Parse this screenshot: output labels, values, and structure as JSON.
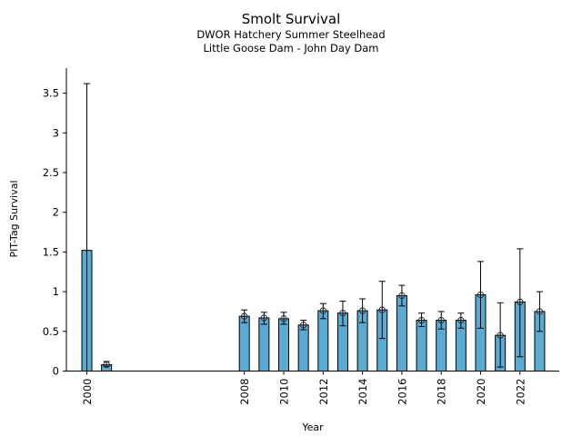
{
  "chart_data": {
    "type": "bar",
    "title": "Smolt Survival",
    "subtitle_lines": [
      "DWOR Hatchery Summer Steelhead",
      "Little Goose Dam - John Day Dam"
    ],
    "xlabel": "Year",
    "ylabel": "PIT-Tag Survival",
    "ylim": [
      0,
      3.8
    ],
    "xlim": [
      1999.0,
      2024.0
    ],
    "yticks": [
      0,
      0.5,
      1,
      1.5,
      2,
      2.5,
      3,
      3.5
    ],
    "ytick_labels": [
      "0",
      "0.5",
      "1",
      "1.5",
      "2",
      "2.5",
      "3",
      "3.5"
    ],
    "xticks": [
      2000,
      2008,
      2010,
      2012,
      2014,
      2016,
      2018,
      2020,
      2022
    ],
    "xtick_labels": [
      "2000",
      "2008",
      "2010",
      "2012",
      "2014",
      "2016",
      "2018",
      "2020",
      "2022"
    ],
    "bar_color": "#5aaad4",
    "grid": false,
    "x": [
      2000,
      2001,
      2008,
      2009,
      2010,
      2011,
      2012,
      2013,
      2014,
      2015,
      2016,
      2017,
      2018,
      2019,
      2020,
      2021,
      2022,
      2023
    ],
    "values": [
      1.52,
      0.08,
      0.69,
      0.67,
      0.66,
      0.58,
      0.76,
      0.73,
      0.76,
      0.77,
      0.95,
      0.64,
      0.64,
      0.64,
      0.96,
      0.45,
      0.87,
      0.75
    ],
    "error_low": [
      0.0,
      0.06,
      0.61,
      0.59,
      0.59,
      0.52,
      0.66,
      0.57,
      0.61,
      0.41,
      0.82,
      0.56,
      0.53,
      0.54,
      0.54,
      0.05,
      0.18,
      0.5
    ],
    "error_high": [
      3.62,
      0.12,
      0.77,
      0.74,
      0.74,
      0.64,
      0.85,
      0.88,
      0.91,
      1.13,
      1.08,
      0.73,
      0.75,
      0.73,
      1.38,
      0.86,
      1.54,
      1.0
    ],
    "point_marker": [
      false,
      true,
      true,
      true,
      true,
      true,
      true,
      true,
      true,
      true,
      true,
      true,
      true,
      true,
      true,
      true,
      true,
      true
    ]
  }
}
